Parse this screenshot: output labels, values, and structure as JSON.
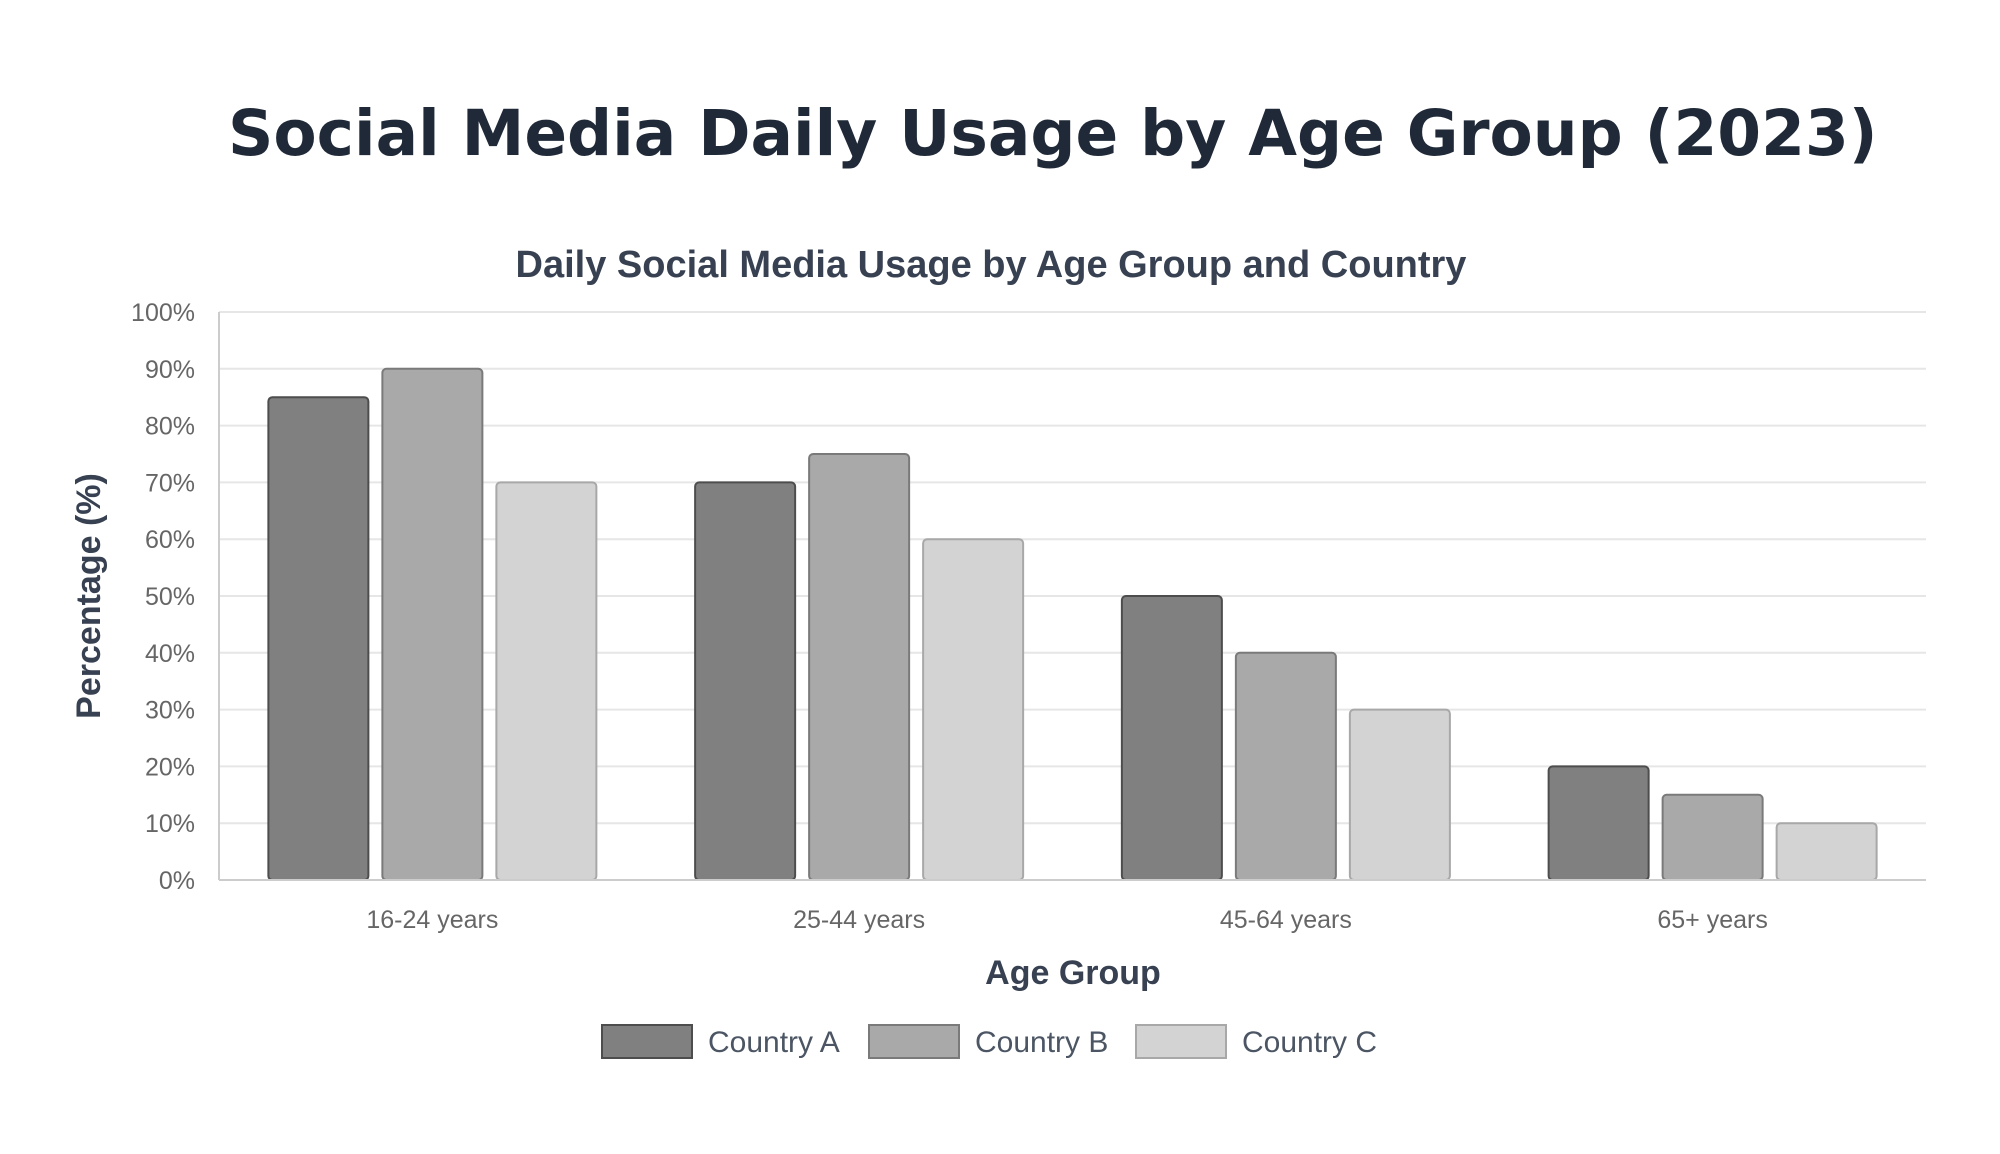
{
  "page": {
    "heading": "Social Media Daily Usage by Age Group (2023)"
  },
  "chart_data": {
    "type": "bar",
    "title": "Daily Social Media Usage by Age Group and Country",
    "xlabel": "Age Group",
    "ylabel": "Percentage (%)",
    "categories": [
      "16-24 years",
      "25-44 years",
      "45-64 years",
      "65+ years"
    ],
    "ylim": [
      0,
      100
    ],
    "y_ticks": [
      0,
      10,
      20,
      30,
      40,
      50,
      60,
      70,
      80,
      90,
      100
    ],
    "y_tick_suffix": "%",
    "grid": true,
    "legend_position": "bottom",
    "series": [
      {
        "name": "Country A",
        "values": [
          85,
          70,
          50,
          20
        ],
        "fill": "#808080",
        "stroke": "#4d4d4d"
      },
      {
        "name": "Country B",
        "values": [
          90,
          75,
          40,
          15
        ],
        "fill": "#a9a9a9",
        "stroke": "#7a7a7a"
      },
      {
        "name": "Country C",
        "values": [
          70,
          60,
          30,
          10
        ],
        "fill": "#d3d3d3",
        "stroke": "#a8a8a8"
      }
    ]
  }
}
